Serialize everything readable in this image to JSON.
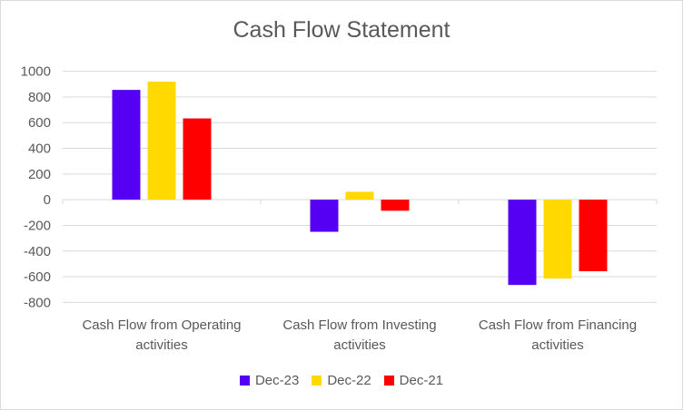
{
  "chart_data": {
    "type": "bar",
    "title": "Cash Flow Statement",
    "categories": [
      [
        "Cash Flow from Operating",
        "activities"
      ],
      [
        "Cash Flow from Investing",
        "activities"
      ],
      [
        "Cash Flow from Financing",
        "activities"
      ]
    ],
    "series": [
      {
        "name": "Dec-23",
        "color": "#5500F2",
        "values": [
          855,
          -250,
          -664
        ]
      },
      {
        "name": "Dec-22",
        "color": "#FFD900",
        "values": [
          919,
          62,
          -614
        ]
      },
      {
        "name": "Dec-21",
        "color": "#FF0000",
        "values": [
          633,
          -86,
          -557
        ]
      }
    ],
    "ylim": [
      -800,
      1000
    ],
    "yticks": [
      1000,
      800,
      600,
      400,
      200,
      0,
      -200,
      -400,
      -600,
      -800
    ],
    "grid": true,
    "legend": "bottom"
  }
}
